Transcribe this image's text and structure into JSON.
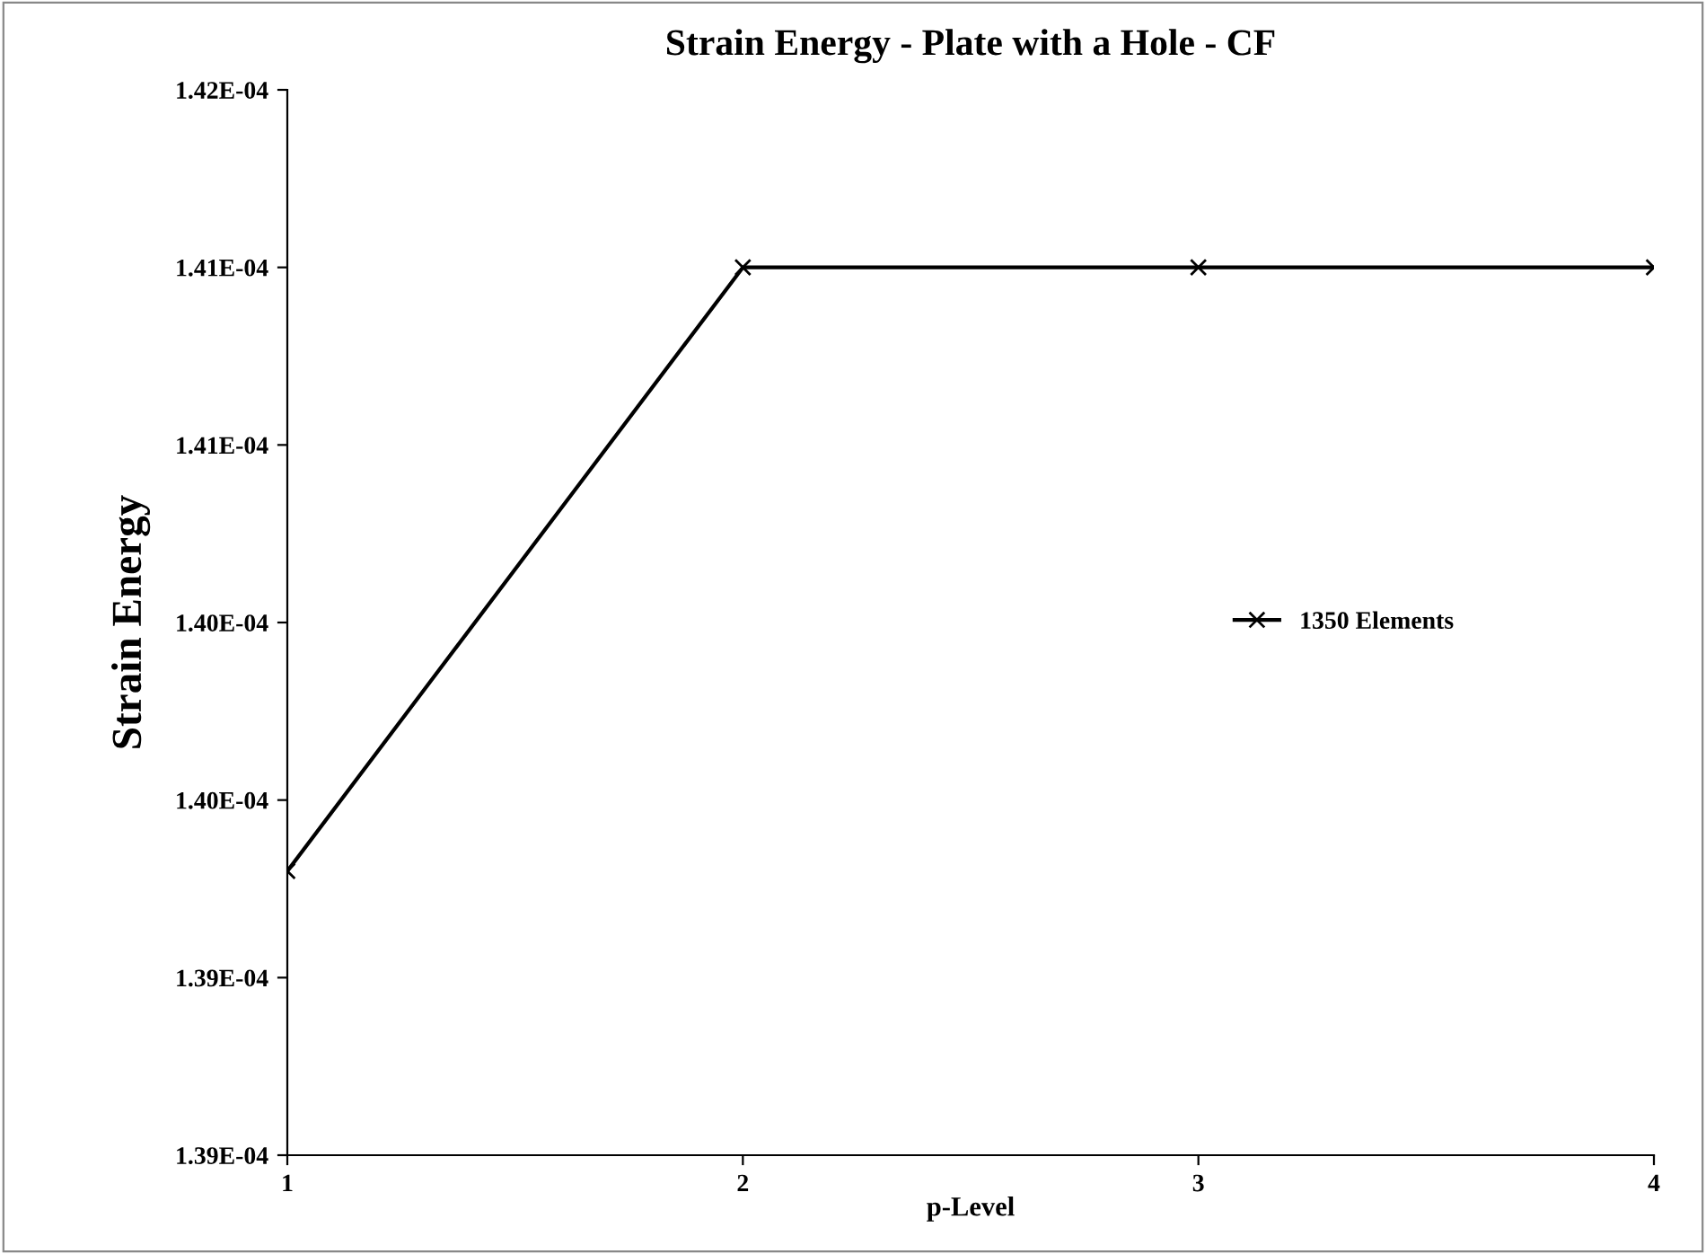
{
  "chart_data": {
    "type": "line",
    "title": "Strain Energy - Plate with a Hole - CF",
    "xlabel": "p-Level",
    "ylabel": "Strain Energy",
    "x": [
      1,
      2,
      3,
      4
    ],
    "series": [
      {
        "name": "1350 Elements",
        "color": "#000000",
        "values": [
          0.0001393,
          0.000141,
          0.000141,
          0.000141
        ]
      }
    ],
    "xlim": [
      1,
      4
    ],
    "xticks": [
      1,
      2,
      3,
      4
    ],
    "ylim": [
      0.0001385,
      0.0001415
    ],
    "yticks": [
      {
        "value": 0.0001385,
        "label": "1.39E-04"
      },
      {
        "value": 0.000139,
        "label": "1.39E-04"
      },
      {
        "value": 0.0001395,
        "label": "1.40E-04"
      },
      {
        "value": 0.00014,
        "label": "1.40E-04"
      },
      {
        "value": 0.0001405,
        "label": "1.41E-04"
      },
      {
        "value": 0.000141,
        "label": "1.41E-04"
      },
      {
        "value": 0.0001415,
        "label": "1.42E-04"
      }
    ],
    "grid": false,
    "legend": "right",
    "marker": "cross",
    "line_style": "solid"
  }
}
